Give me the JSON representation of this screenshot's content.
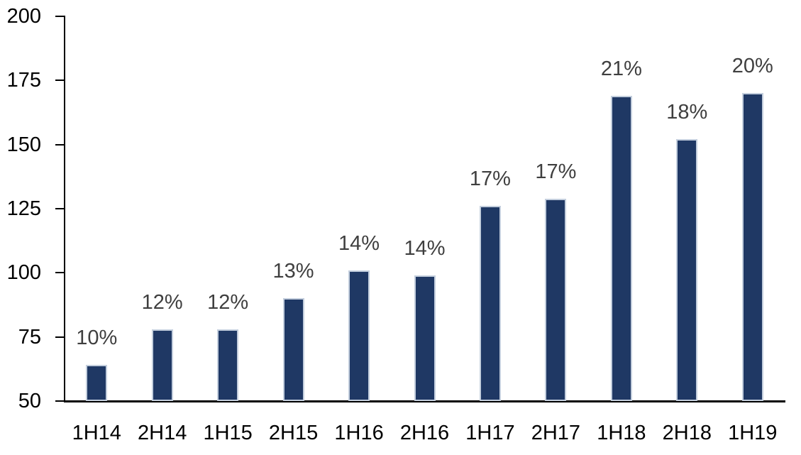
{
  "chart_data": {
    "type": "bar",
    "title": "",
    "xlabel": "",
    "ylabel": "",
    "categories": [
      "1H14",
      "2H14",
      "1H15",
      "2H15",
      "1H16",
      "2H16",
      "1H17",
      "2H17",
      "1H18",
      "2H18",
      "1H19"
    ],
    "values": [
      64,
      78,
      78,
      90,
      101,
      99,
      126,
      129,
      169,
      152,
      170
    ],
    "data_labels": [
      "10%",
      "12%",
      "12%",
      "13%",
      "14%",
      "14%",
      "17%",
      "17%",
      "21%",
      "18%",
      "20%"
    ],
    "ylim": [
      50,
      200
    ],
    "yticks": [
      50,
      75,
      100,
      125,
      150,
      175,
      200
    ],
    "grid": false,
    "legend": false,
    "layout": "single series, truncated axis starting at 50, data labels outside end of bars",
    "colors": {
      "bar_fill": "#1F3864",
      "bar_border": "#C3CEDD",
      "data_label": "#3F3F3F",
      "axis": "#000000",
      "background": "#FFFFFF"
    }
  }
}
